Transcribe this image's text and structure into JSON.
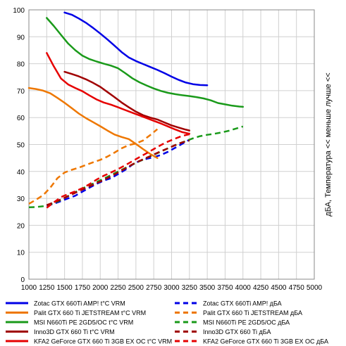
{
  "chart_data": {
    "type": "line",
    "title": "",
    "xlabel": "",
    "ylabel": "дБА, Температура <<  меньше лучше  <<",
    "xlim": [
      1000,
      5000
    ],
    "ylim": [
      0,
      100
    ],
    "x_ticks": [
      "1000",
      "1250",
      "1500",
      "1750",
      "2000",
      "2250",
      "2500",
      "2750",
      "3000",
      "3250",
      "3500",
      "3750",
      "4000",
      "4250",
      "4500",
      "4750",
      "5000"
    ],
    "y_ticks": [
      "0",
      "10",
      "20",
      "30",
      "40",
      "50",
      "60",
      "70",
      "80",
      "90",
      "100"
    ],
    "grid": true,
    "legend_position": "bottom",
    "series": [
      {
        "name": "Zotac  GTX 660Ti AMP! t°C VRM",
        "color": "#0000e6",
        "style": "solid",
        "x": [
          1500,
          1600,
          1700,
          1800,
          1900,
          2000,
          2100,
          2200,
          2300,
          2400,
          2500,
          2600,
          2700,
          2800,
          2900,
          3000,
          3100,
          3200,
          3300,
          3400,
          3500
        ],
        "y": [
          99,
          98.2,
          96.8,
          95.2,
          93.3,
          91.2,
          89,
          86.7,
          84.3,
          82.3,
          81,
          79.9,
          78.8,
          77.7,
          76.5,
          75.2,
          74,
          73,
          72.4,
          72.1,
          72
        ]
      },
      {
        "name": "Zotac  GTX 660Ti AMP! дБА",
        "color": "#0000e6",
        "style": "dashed",
        "x": [
          1250,
          1350,
          1450,
          1550,
          1650,
          1750,
          1850,
          1950,
          2050,
          2150,
          2250,
          2350,
          2450,
          2550,
          2650,
          2750,
          2850,
          2950,
          3050,
          3150,
          3250
        ],
        "y": [
          27.3,
          28,
          29,
          30,
          31,
          32.5,
          34,
          35.4,
          36.6,
          37.5,
          39,
          40.6,
          42.5,
          43.9,
          44.7,
          45.3,
          46.1,
          47.3,
          48.8,
          50.3,
          51.8
        ]
      },
      {
        "name": "Palit GTX 660  Ti JETSTREAM t°C VRM",
        "color": "#ee7700",
        "style": "solid",
        "x": [
          1000,
          1100,
          1200,
          1300,
          1400,
          1500,
          1600,
          1700,
          1800,
          1900,
          2000,
          2100,
          2200,
          2300,
          2400,
          2500,
          2600,
          2700,
          2800
        ],
        "y": [
          71,
          70.6,
          70,
          69,
          67.3,
          65.5,
          63.5,
          61.5,
          59.8,
          58.3,
          56.8,
          55.2,
          53.7,
          52.8,
          52,
          50.2,
          48.3,
          46.5,
          45
        ]
      },
      {
        "name": "Palit GTX 660  Ti JETSTREAM дБА",
        "color": "#ee7700",
        "style": "dashed",
        "x": [
          1000,
          1100,
          1200,
          1300,
          1400,
          1500,
          1600,
          1700,
          1800,
          1900,
          2000,
          2100,
          2200,
          2300,
          2400,
          2500,
          2600,
          2700,
          2800
        ],
        "y": [
          28,
          29.5,
          31.2,
          34,
          37.5,
          39.6,
          40.6,
          41.4,
          42.4,
          43.4,
          44.3,
          45.5,
          47,
          48.6,
          49.8,
          50.4,
          51.5,
          53.5,
          55.7
        ]
      },
      {
        "name": "MSI N660Ti PE 2GD5/OC t°C VRM",
        "color": "#1a9a1a",
        "style": "solid",
        "x": [
          1250,
          1350,
          1450,
          1550,
          1650,
          1750,
          1850,
          1950,
          2050,
          2150,
          2250,
          2350,
          2450,
          2550,
          2650,
          2750,
          2850,
          2950,
          3050,
          3150,
          3250,
          3350,
          3450,
          3550,
          3650,
          3750,
          3850,
          3950,
          4000
        ],
        "y": [
          97,
          94,
          90.7,
          87.5,
          85,
          83,
          81.7,
          80.8,
          80,
          79.3,
          78.3,
          76.5,
          74.6,
          73.1,
          71.9,
          70.8,
          69.9,
          69.2,
          68.7,
          68.3,
          68,
          67.6,
          67.1,
          66.4,
          65.4,
          64.9,
          64.4,
          64.1,
          64
        ]
      },
      {
        "name": "MSI N660Ti PE 2GD5/OC дБА",
        "color": "#1a9a1a",
        "style": "dashed",
        "x": [
          1000,
          1100,
          1200,
          1300,
          1400,
          1500,
          1600,
          1700,
          1800,
          1900,
          2000,
          2100,
          2200,
          2300,
          2400,
          2500,
          2600,
          2700,
          2800,
          2900,
          3000,
          3100,
          3200,
          3300,
          3400,
          3500,
          3600,
          3700,
          3800,
          3900,
          4000
        ],
        "y": [
          26.7,
          26.8,
          27.1,
          27.8,
          28.8,
          30.2,
          31.6,
          33,
          34.3,
          35.5,
          36.7,
          38,
          39.3,
          40.6,
          41.9,
          43.2,
          44.4,
          45.6,
          46.8,
          48,
          49.2,
          50.3,
          51.3,
          52.3,
          53.1,
          53.6,
          54,
          54.5,
          55.1,
          55.9,
          56.7
        ]
      },
      {
        "name": "Inno3D GTX 660  Ti t°C VRM",
        "color": "#a00000",
        "style": "solid",
        "x": [
          1500,
          1600,
          1700,
          1800,
          1900,
          2000,
          2100,
          2200,
          2300,
          2400,
          2500,
          2600,
          2700,
          2800,
          2900,
          3000,
          3100,
          3200,
          3250
        ],
        "y": [
          77,
          76.2,
          75.3,
          74.2,
          72.9,
          71.4,
          69.5,
          67.6,
          65.6,
          63.8,
          62.2,
          60.9,
          60,
          59.3,
          58.2,
          57.1,
          56.3,
          55.5,
          55.2
        ]
      },
      {
        "name": "Inno3D GTX 660  Ti дБА",
        "color": "#a00000",
        "style": "dashed",
        "x": [
          1250,
          1350,
          1450,
          1550,
          1650,
          1750,
          1850,
          1950,
          2050,
          2150,
          2250,
          2350,
          2450,
          2550,
          2650,
          2750,
          2850,
          2950,
          3050,
          3150,
          3250
        ],
        "y": [
          27.5,
          28.5,
          29.6,
          30.8,
          32.1,
          33.3,
          34.5,
          35.7,
          36.9,
          38.2,
          39.6,
          41.1,
          42.6,
          43.9,
          45.1,
          46.3,
          47.5,
          48.6,
          49.8,
          50.8,
          51.5
        ]
      },
      {
        "name": "KFA2 GeForce GTX 660 Ti 3GB EX OC t°C VRM",
        "color": "#e60000",
        "style": "solid",
        "x": [
          1250,
          1350,
          1450,
          1550,
          1650,
          1750,
          1850,
          1950,
          2050,
          2150,
          2250,
          2350,
          2450,
          2550,
          2650,
          2750,
          2850,
          2950,
          3050,
          3150,
          3250
        ],
        "y": [
          84,
          79,
          74.5,
          72.3,
          71,
          69.8,
          68.2,
          66.7,
          65.6,
          64.8,
          63.8,
          62.8,
          61.8,
          60.8,
          59.8,
          58.8,
          57.8,
          56.7,
          55.6,
          54.6,
          54
        ]
      },
      {
        "name": "KFA2 GeForce GTX 660 Ti 3GB EX OC дБА",
        "color": "#e60000",
        "style": "dashed",
        "x": [
          1250,
          1350,
          1450,
          1550,
          1650,
          1750,
          1850,
          1950,
          2050,
          2150,
          2250,
          2350,
          2450,
          2550,
          2650,
          2750,
          2850,
          2950,
          3050,
          3150,
          3250
        ],
        "y": [
          26.5,
          28.5,
          30.5,
          31.6,
          32.6,
          33.8,
          35.3,
          37,
          38.4,
          39.6,
          40.9,
          42.3,
          43.8,
          45.3,
          46.8,
          48.3,
          49.8,
          51.1,
          52.2,
          53.2,
          53.8
        ]
      }
    ]
  }
}
